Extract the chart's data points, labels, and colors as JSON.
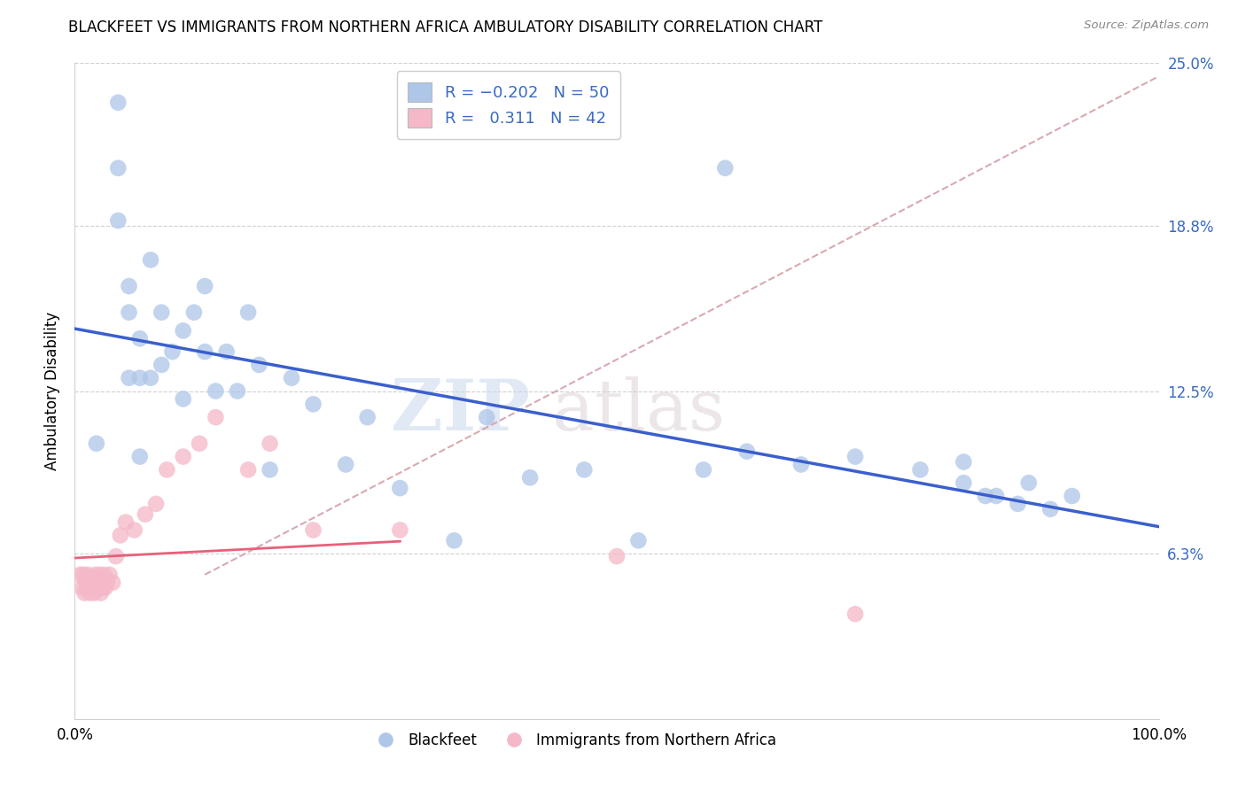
{
  "title": "BLACKFEET VS IMMIGRANTS FROM NORTHERN AFRICA AMBULATORY DISABILITY CORRELATION CHART",
  "source": "Source: ZipAtlas.com",
  "ylabel": "Ambulatory Disability",
  "xlim": [
    0,
    1.0
  ],
  "ylim": [
    0,
    0.25
  ],
  "yticks": [
    0.063,
    0.125,
    0.188,
    0.25
  ],
  "ytick_labels": [
    "6.3%",
    "12.5%",
    "18.8%",
    "25.0%"
  ],
  "xticks": [
    0.0,
    0.25,
    0.5,
    0.75,
    1.0
  ],
  "xtick_labels": [
    "0.0%",
    "",
    "",
    "",
    "100.0%"
  ],
  "color_blue": "#aec6e8",
  "color_pink": "#f4b8c8",
  "line_color_blue": "#3a5fcd",
  "line_color_pink": "#e8607a",
  "line_color_dashed": "#d4a0a8",
  "watermark_zip": "ZIP",
  "watermark_atlas": "atlas",
  "blackfeet_x": [
    0.02,
    0.04,
    0.04,
    0.05,
    0.05,
    0.06,
    0.06,
    0.06,
    0.07,
    0.07,
    0.08,
    0.08,
    0.09,
    0.1,
    0.1,
    0.11,
    0.12,
    0.12,
    0.13,
    0.14,
    0.15,
    0.16,
    0.17,
    0.18,
    0.2,
    0.22,
    0.25,
    0.27,
    0.3,
    0.35,
    0.38,
    0.42,
    0.47,
    0.52,
    0.58,
    0.62,
    0.67,
    0.72,
    0.78,
    0.82,
    0.85,
    0.88,
    0.9,
    0.92,
    0.6,
    0.82,
    0.84,
    0.87,
    0.04,
    0.05
  ],
  "blackfeet_y": [
    0.105,
    0.235,
    0.21,
    0.165,
    0.155,
    0.145,
    0.13,
    0.1,
    0.175,
    0.13,
    0.155,
    0.135,
    0.14,
    0.148,
    0.122,
    0.155,
    0.14,
    0.165,
    0.125,
    0.14,
    0.125,
    0.155,
    0.135,
    0.095,
    0.13,
    0.12,
    0.097,
    0.115,
    0.088,
    0.068,
    0.115,
    0.092,
    0.095,
    0.068,
    0.095,
    0.102,
    0.097,
    0.1,
    0.095,
    0.098,
    0.085,
    0.09,
    0.08,
    0.085,
    0.21,
    0.09,
    0.085,
    0.082,
    0.19,
    0.13
  ],
  "immigrants_x": [
    0.005,
    0.007,
    0.008,
    0.009,
    0.01,
    0.011,
    0.012,
    0.013,
    0.014,
    0.015,
    0.016,
    0.017,
    0.018,
    0.019,
    0.02,
    0.021,
    0.022,
    0.023,
    0.024,
    0.025,
    0.026,
    0.027,
    0.028,
    0.03,
    0.032,
    0.035,
    0.038,
    0.042,
    0.047,
    0.055,
    0.065,
    0.075,
    0.085,
    0.1,
    0.115,
    0.13,
    0.16,
    0.18,
    0.22,
    0.3,
    0.5,
    0.72
  ],
  "immigrants_y": [
    0.055,
    0.05,
    0.055,
    0.048,
    0.052,
    0.05,
    0.055,
    0.052,
    0.048,
    0.053,
    0.05,
    0.052,
    0.048,
    0.055,
    0.053,
    0.05,
    0.052,
    0.055,
    0.048,
    0.052,
    0.05,
    0.055,
    0.05,
    0.052,
    0.055,
    0.052,
    0.062,
    0.07,
    0.075,
    0.072,
    0.078,
    0.082,
    0.095,
    0.1,
    0.105,
    0.115,
    0.095,
    0.105,
    0.072,
    0.072,
    0.062,
    0.04
  ]
}
